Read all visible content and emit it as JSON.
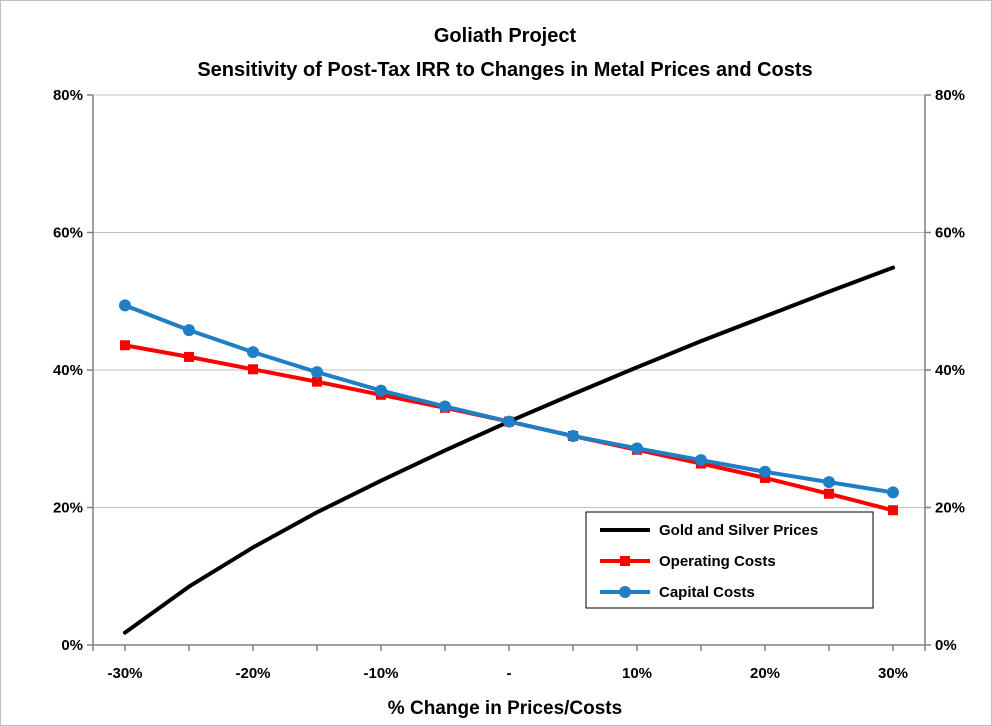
{
  "chart_data": {
    "type": "line",
    "title": "Goliath Project",
    "subtitle": "Sensitivity of Post-Tax IRR to Changes in Metal Prices and Costs",
    "xlabel": "% Change in Prices/Costs",
    "ylabel": "",
    "x": [
      -30,
      -25,
      -20,
      -15,
      -10,
      -5,
      0,
      5,
      10,
      15,
      20,
      25,
      30
    ],
    "x_tick_values": [
      -30,
      -20,
      -10,
      0,
      10,
      20,
      30
    ],
    "x_tick_labels": [
      "-30%",
      "-20%",
      "-10%",
      "-",
      "10%",
      "20%",
      "30%"
    ],
    "xlim": [
      -32.5,
      32.5
    ],
    "ylim": [
      0,
      80
    ],
    "y_ticks": [
      0,
      20,
      40,
      60,
      80
    ],
    "y_tick_labels": [
      "0%",
      "20%",
      "40%",
      "60%",
      "80%"
    ],
    "y2_tick_labels": [
      "0%",
      "20%",
      "40%",
      "60%",
      "80%"
    ],
    "grid": "horizontal",
    "legend_position": "bottom-right",
    "series": [
      {
        "name": "Gold and Silver Prices",
        "color": "#000000",
        "marker": "none",
        "values": [
          1.8,
          8.5,
          14.2,
          19.3,
          23.9,
          28.3,
          32.5,
          36.5,
          40.4,
          44.2,
          47.8,
          51.4,
          54.9
        ]
      },
      {
        "name": "Operating Costs",
        "color": "#ff0000",
        "marker": "square",
        "values": [
          43.6,
          41.9,
          40.1,
          38.3,
          36.4,
          34.5,
          32.5,
          30.4,
          28.4,
          26.4,
          24.3,
          22.0,
          19.6
        ]
      },
      {
        "name": "Capital Costs",
        "color": "#1f7fc4",
        "marker": "circle",
        "values": [
          49.4,
          45.8,
          42.6,
          39.7,
          37.0,
          34.7,
          32.5,
          30.4,
          28.6,
          26.9,
          25.2,
          23.7,
          22.2
        ]
      }
    ]
  }
}
